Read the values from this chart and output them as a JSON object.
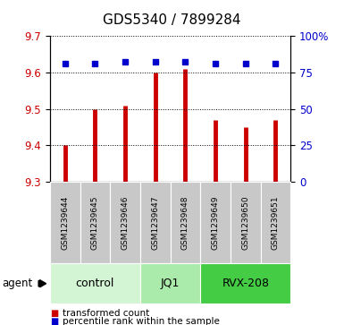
{
  "title": "GDS5340 / 7899284",
  "samples": [
    "GSM1239644",
    "GSM1239645",
    "GSM1239646",
    "GSM1239647",
    "GSM1239648",
    "GSM1239649",
    "GSM1239650",
    "GSM1239651"
  ],
  "red_values": [
    9.4,
    9.5,
    9.51,
    9.6,
    9.61,
    9.47,
    9.45,
    9.47
  ],
  "blue_values": [
    81,
    81,
    82,
    82,
    82,
    81,
    81,
    81
  ],
  "ylim_left": [
    9.3,
    9.7
  ],
  "ylim_right": [
    0,
    100
  ],
  "yticks_left": [
    9.3,
    9.4,
    9.5,
    9.6,
    9.7
  ],
  "yticks_right": [
    0,
    25,
    50,
    75,
    100
  ],
  "ytick_labels_right": [
    "0",
    "25",
    "50",
    "75",
    "100%"
  ],
  "groups": [
    {
      "label": "control",
      "start": 0,
      "end": 3,
      "color": "#d4f5d4"
    },
    {
      "label": "JQ1",
      "start": 3,
      "end": 5,
      "color": "#aaeaaa"
    },
    {
      "label": "RVX-208",
      "start": 5,
      "end": 8,
      "color": "#44cc44"
    }
  ],
  "legend_red": "transformed count",
  "legend_blue": "percentile rank within the sample",
  "agent_label": "agent",
  "red_color": "#cc0000",
  "blue_color": "#0000cc",
  "gray_box_color": "#c8c8c8",
  "title_fontsize": 11,
  "tick_fontsize": 8.5,
  "sample_fontsize": 6.5,
  "group_label_fontsize": 9,
  "legend_fontsize": 7.5
}
